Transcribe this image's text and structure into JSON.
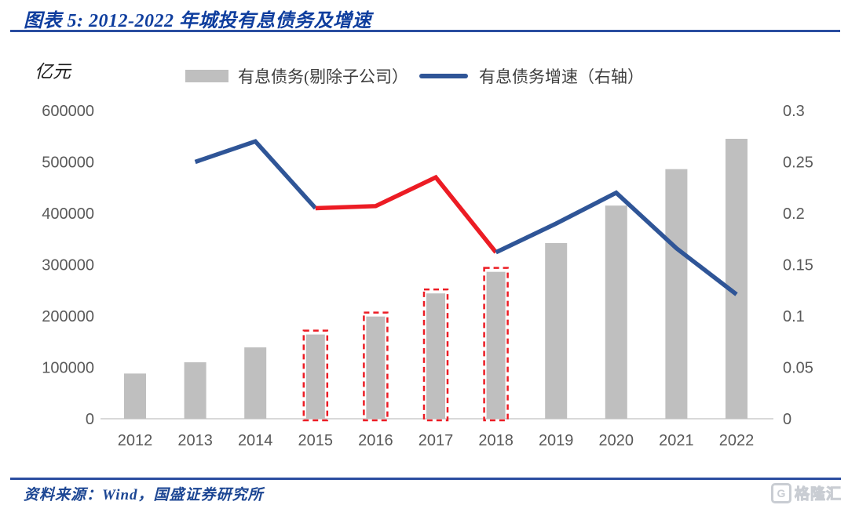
{
  "header": {
    "title": "图表 5:  2012-2022 年城投有息债务及增速"
  },
  "legend": {
    "bar_label": "有息债务(剔除子公司）",
    "line_label": "有息债务增速（右轴）"
  },
  "unit_label": "亿元",
  "colors": {
    "bar": "#BFBFBF",
    "line_blue": "#2F5597",
    "line_red": "#EC1C24",
    "axis_text": "#595959",
    "baseline": "#D9D9D9",
    "title_navy": "#0F3E9E"
  },
  "chart_data": {
    "type": "bar",
    "subtype": "combo bar+line, secondary right axis",
    "title": "2012-2022 年城投有息债务及增速",
    "unit_left": "亿元",
    "categories": [
      2012,
      2013,
      2014,
      2015,
      2016,
      2017,
      2018,
      2019,
      2020,
      2021,
      2022
    ],
    "series": [
      {
        "name": "有息债务(剔除子公司）",
        "type": "bar",
        "axis": "left",
        "color": "#BFBFBF",
        "values": [
          88000,
          110000,
          139000,
          164000,
          199000,
          244000,
          286000,
          342000,
          415000,
          486000,
          545000
        ],
        "highlighted_years": [
          2015,
          2016,
          2017,
          2018
        ],
        "highlight_style": "red dashed outline"
      },
      {
        "name": "有息债务增速（右轴）",
        "type": "line",
        "axis": "right",
        "points": [
          {
            "year": 2013,
            "value": 0.25
          },
          {
            "year": 2014,
            "value": 0.27
          },
          {
            "year": 2015,
            "value": 0.205
          },
          {
            "year": 2016,
            "value": 0.207
          },
          {
            "year": 2017,
            "value": 0.235
          },
          {
            "year": 2018,
            "value": 0.162
          },
          {
            "year": 2019,
            "value": 0.19
          },
          {
            "year": 2020,
            "value": 0.22
          },
          {
            "year": 2021,
            "value": 0.166
          },
          {
            "year": 2022,
            "value": 0.121
          }
        ],
        "segments": [
          {
            "color": "#2F5597",
            "from": 2013,
            "to": 2015
          },
          {
            "color": "#EC1C24",
            "from": 2015,
            "to": 2018
          },
          {
            "color": "#2F5597",
            "from": 2018,
            "to": 2022
          }
        ]
      }
    ],
    "left_axis": {
      "label": "亿元",
      "ticks": [
        "0",
        "100000",
        "200000",
        "300000",
        "400000",
        "500000",
        "600000"
      ],
      "range": [
        0,
        600000
      ]
    },
    "right_axis": {
      "ticks": [
        "0",
        "0.05",
        "0.1",
        "0.15",
        "0.2",
        "0.25",
        "0.3"
      ],
      "range": [
        0,
        0.3
      ]
    },
    "grid": false,
    "legend_position": "top-center"
  },
  "footer": {
    "source": "资料来源：Wind，国盛证券研究所",
    "logo_mark": "G",
    "logo_text": "格隆汇"
  }
}
